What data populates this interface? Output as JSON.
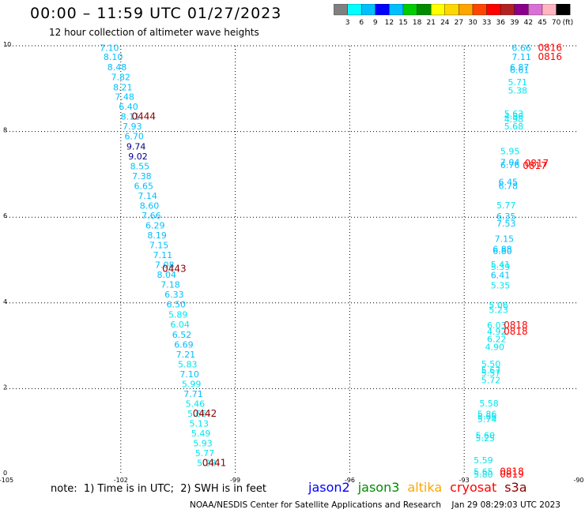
{
  "header": {
    "title": "00:00 – 11:59 UTC 01/27/2023",
    "subtitle": "12 hour collection of altimeter wave heights"
  },
  "colorbar": {
    "ticks": [
      "3",
      "6",
      "9",
      "12",
      "15",
      "18",
      "21",
      "24",
      "27",
      "30",
      "33",
      "36",
      "39",
      "42",
      "45",
      "70"
    ],
    "unit": "(ft)",
    "colors": [
      "#808080",
      "#00ffff",
      "#00bfff",
      "#0000ff",
      "#00bfff",
      "#00cd00",
      "#008b00",
      "#ffff00",
      "#ffd700",
      "#ffa500",
      "#ff4500",
      "#ff0000",
      "#b22222",
      "#8b008b",
      "#da70d6",
      "#ffb6c1",
      "#000000"
    ]
  },
  "note": "note:  1) Time is in UTC;  2) SWH is in feet",
  "satellites": [
    {
      "name": "jason2",
      "color": "#0000ff"
    },
    {
      "name": "jason3",
      "color": "#008b00"
    },
    {
      "name": "altika",
      "color": "#ffa500"
    },
    {
      "name": "cryosat",
      "color": "#ff0000"
    },
    {
      "name": "s3a",
      "color": "#8b0000"
    }
  ],
  "footer": "NOAA/NESDIS Center for Satellite Applications and Research    Jan 29 08:29:03 UTC 2023",
  "chart_data": {
    "type": "scatter",
    "xlim": [
      -105,
      -90
    ],
    "ylim": [
      0,
      10
    ],
    "x_ticks": [
      "-105",
      "-102",
      "-99",
      "-96",
      "-93",
      "-90"
    ],
    "y_ticks": [
      "0",
      "2",
      "4",
      "6",
      "8",
      "10"
    ],
    "grid": true,
    "colors": {
      "light": "#00bfff",
      "mid": "#00e5ee",
      "dark": "#00008b",
      "time": "#8b0000",
      "time_red": "#ff0000"
    },
    "series": [
      {
        "points": [
          {
            "x": -102.3,
            "y": 9.95,
            "v": "7.10",
            "c": "light"
          },
          {
            "x": -102.2,
            "y": 9.74,
            "v": "8.10",
            "c": "light"
          },
          {
            "x": -102.1,
            "y": 9.5,
            "v": "8.48",
            "c": "light"
          },
          {
            "x": -102.0,
            "y": 9.27,
            "v": "7.82",
            "c": "light"
          },
          {
            "x": -101.95,
            "y": 9.03,
            "v": "8.21",
            "c": "light"
          },
          {
            "x": -101.9,
            "y": 8.81,
            "v": "7.48",
            "c": "light"
          },
          {
            "x": -101.8,
            "y": 8.58,
            "v": "6.40",
            "c": "light"
          },
          {
            "x": -101.75,
            "y": 8.35,
            "v": "8.11",
            "c": "light"
          },
          {
            "x": -101.7,
            "y": 8.12,
            "v": "7.93",
            "c": "light"
          },
          {
            "x": -101.65,
            "y": 7.89,
            "v": "6.70",
            "c": "light"
          },
          {
            "x": -101.6,
            "y": 7.65,
            "v": "9.74",
            "c": "dark"
          },
          {
            "x": -101.55,
            "y": 7.42,
            "v": "9.02",
            "c": "dark"
          },
          {
            "x": -101.5,
            "y": 7.19,
            "v": "8.55",
            "c": "light"
          },
          {
            "x": -101.45,
            "y": 6.96,
            "v": "7.38",
            "c": "light"
          },
          {
            "x": -101.4,
            "y": 6.73,
            "v": "6.65",
            "c": "light"
          },
          {
            "x": -101.3,
            "y": 6.5,
            "v": "7.14",
            "c": "light"
          },
          {
            "x": -101.25,
            "y": 6.27,
            "v": "8.60",
            "c": "light"
          },
          {
            "x": -101.2,
            "y": 6.04,
            "v": "7.66",
            "c": "light"
          },
          {
            "x": -101.1,
            "y": 5.81,
            "v": "6.29",
            "c": "light"
          },
          {
            "x": -101.05,
            "y": 5.58,
            "v": "8.19",
            "c": "light"
          },
          {
            "x": -101.0,
            "y": 5.35,
            "v": "7.15",
            "c": "light"
          },
          {
            "x": -100.9,
            "y": 5.12,
            "v": "7.11",
            "c": "light"
          },
          {
            "x": -100.85,
            "y": 4.89,
            "v": "7.08",
            "c": "light"
          },
          {
            "x": -100.8,
            "y": 4.66,
            "v": "8.04",
            "c": "light"
          },
          {
            "x": -100.7,
            "y": 4.43,
            "v": "7.18",
            "c": "light"
          },
          {
            "x": -100.6,
            "y": 4.2,
            "v": "6.33",
            "c": "light"
          },
          {
            "x": -100.55,
            "y": 3.97,
            "v": "6.50",
            "c": "light"
          },
          {
            "x": -100.5,
            "y": 3.73,
            "v": "5.89",
            "c": "mid"
          },
          {
            "x": -100.45,
            "y": 3.5,
            "v": "6.04",
            "c": "mid"
          },
          {
            "x": -100.4,
            "y": 3.26,
            "v": "6.52",
            "c": "light"
          },
          {
            "x": -100.35,
            "y": 3.03,
            "v": "6.69",
            "c": "light"
          },
          {
            "x": -100.3,
            "y": 2.8,
            "v": "7.21",
            "c": "light"
          },
          {
            "x": -100.25,
            "y": 2.57,
            "v": "5.83",
            "c": "mid"
          },
          {
            "x": -100.2,
            "y": 2.34,
            "v": "7.10",
            "c": "light"
          },
          {
            "x": -100.15,
            "y": 2.11,
            "v": "5.99",
            "c": "mid"
          },
          {
            "x": -100.1,
            "y": 1.88,
            "v": "7.71",
            "c": "light"
          },
          {
            "x": -100.05,
            "y": 1.65,
            "v": "5.46",
            "c": "mid"
          },
          {
            "x": -100.0,
            "y": 1.42,
            "v": "5.66",
            "c": "mid"
          },
          {
            "x": -99.95,
            "y": 1.19,
            "v": "5.13",
            "c": "mid"
          },
          {
            "x": -99.9,
            "y": 0.96,
            "v": "5.49",
            "c": "mid"
          },
          {
            "x": -99.85,
            "y": 0.73,
            "v": "5.93",
            "c": "mid"
          },
          {
            "x": -99.8,
            "y": 0.5,
            "v": "5.77",
            "c": "mid"
          },
          {
            "x": -99.75,
            "y": 0.27,
            "v": "5.28",
            "c": "mid"
          }
        ],
        "times": [
          {
            "x": -101.4,
            "y": 8.35,
            "v": "0444",
            "c": "time"
          },
          {
            "x": -100.6,
            "y": 4.8,
            "v": "0443",
            "c": "time"
          },
          {
            "x": -99.8,
            "y": 1.42,
            "v": "0442",
            "c": "time"
          },
          {
            "x": -99.55,
            "y": 0.27,
            "v": "0441",
            "c": "time"
          }
        ]
      },
      {
        "points": [
          {
            "x": -91.5,
            "y": 9.95,
            "v": "6.66",
            "c": "light"
          },
          {
            "x": -91.5,
            "y": 9.74,
            "v": "7.11",
            "c": "light"
          },
          {
            "x": -91.55,
            "y": 9.5,
            "v": "6.87",
            "c": "light"
          },
          {
            "x": -91.55,
            "y": 9.44,
            "v": "6.61",
            "c": "light"
          },
          {
            "x": -91.6,
            "y": 9.15,
            "v": "5.71",
            "c": "mid"
          },
          {
            "x": -91.6,
            "y": 8.96,
            "v": "5.38",
            "c": "mid"
          },
          {
            "x": -91.7,
            "y": 8.42,
            "v": "5.63",
            "c": "mid"
          },
          {
            "x": -91.7,
            "y": 8.36,
            "v": "4.86",
            "c": "mid"
          },
          {
            "x": -91.7,
            "y": 8.29,
            "v": "4.98",
            "c": "mid"
          },
          {
            "x": -91.7,
            "y": 8.12,
            "v": "5.68",
            "c": "mid"
          },
          {
            "x": -91.8,
            "y": 7.54,
            "v": "5.95",
            "c": "mid"
          },
          {
            "x": -91.8,
            "y": 7.28,
            "v": "7.04",
            "c": "light"
          },
          {
            "x": -91.8,
            "y": 7.22,
            "v": "6.76",
            "c": "light"
          },
          {
            "x": -91.85,
            "y": 6.82,
            "v": "6.45",
            "c": "light"
          },
          {
            "x": -91.85,
            "y": 6.73,
            "v": "6.78",
            "c": "light"
          },
          {
            "x": -91.9,
            "y": 6.28,
            "v": "5.77",
            "c": "mid"
          },
          {
            "x": -91.9,
            "y": 6.02,
            "v": "6.35",
            "c": "light"
          },
          {
            "x": -91.9,
            "y": 5.86,
            "v": "7.53",
            "c": "light"
          },
          {
            "x": -91.95,
            "y": 5.5,
            "v": "7.15",
            "c": "light"
          },
          {
            "x": -92.0,
            "y": 5.26,
            "v": "6.88",
            "c": "light"
          },
          {
            "x": -92.0,
            "y": 5.21,
            "v": "6.80",
            "c": "light"
          },
          {
            "x": -92.05,
            "y": 4.9,
            "v": "5.41",
            "c": "mid"
          },
          {
            "x": -92.05,
            "y": 4.84,
            "v": "5.39",
            "c": "mid"
          },
          {
            "x": -92.05,
            "y": 4.65,
            "v": "6.41",
            "c": "light"
          },
          {
            "x": -92.05,
            "y": 4.41,
            "v": "5.35",
            "c": "mid"
          },
          {
            "x": -92.1,
            "y": 3.95,
            "v": "5.06",
            "c": "mid"
          },
          {
            "x": -92.1,
            "y": 3.84,
            "v": "5.23",
            "c": "mid"
          },
          {
            "x": -92.15,
            "y": 3.48,
            "v": "6.03",
            "c": "mid"
          },
          {
            "x": -92.15,
            "y": 3.33,
            "v": "4.92",
            "c": "mid"
          },
          {
            "x": -92.15,
            "y": 3.16,
            "v": "6.22",
            "c": "mid"
          },
          {
            "x": -92.2,
            "y": 2.97,
            "v": "4.90",
            "c": "mid"
          },
          {
            "x": -92.3,
            "y": 2.58,
            "v": "5.50",
            "c": "mid"
          },
          {
            "x": -92.3,
            "y": 2.43,
            "v": "5.67",
            "c": "mid"
          },
          {
            "x": -92.3,
            "y": 2.37,
            "v": "5.57",
            "c": "mid"
          },
          {
            "x": -92.3,
            "y": 2.2,
            "v": "5.72",
            "c": "mid"
          },
          {
            "x": -92.35,
            "y": 1.66,
            "v": "5.58",
            "c": "mid"
          },
          {
            "x": -92.4,
            "y": 1.41,
            "v": "5.86",
            "c": "mid"
          },
          {
            "x": -92.4,
            "y": 1.35,
            "v": "5.66",
            "c": "mid"
          },
          {
            "x": -92.4,
            "y": 1.29,
            "v": "5.74",
            "c": "mid"
          },
          {
            "x": -92.45,
            "y": 0.91,
            "v": "5.60",
            "c": "mid"
          },
          {
            "x": -92.45,
            "y": 0.85,
            "v": "5.25",
            "c": "mid"
          },
          {
            "x": -92.5,
            "y": 0.33,
            "v": "5.59",
            "c": "mid"
          },
          {
            "x": -92.5,
            "y": 0.06,
            "v": "5.65",
            "c": "mid"
          },
          {
            "x": -92.5,
            "y": 0.0,
            "v": "5.80",
            "c": "mid"
          }
        ],
        "times": [
          {
            "x": -90.75,
            "y": 9.95,
            "v": "0816",
            "c": "time_red"
          },
          {
            "x": -90.75,
            "y": 9.74,
            "v": "0816",
            "c": "time_red"
          },
          {
            "x": -91.1,
            "y": 7.26,
            "v": "0817",
            "c": "time_red"
          },
          {
            "x": -91.15,
            "y": 7.2,
            "v": "0817",
            "c": "time_red"
          },
          {
            "x": -91.65,
            "y": 3.48,
            "v": "0818",
            "c": "time_red"
          },
          {
            "x": -91.65,
            "y": 3.33,
            "v": "0818",
            "c": "time_red"
          },
          {
            "x": -91.75,
            "y": 0.06,
            "v": "0818",
            "c": "time_red"
          },
          {
            "x": -91.75,
            "y": 0.0,
            "v": "0819",
            "c": "time_red"
          }
        ]
      }
    ]
  }
}
